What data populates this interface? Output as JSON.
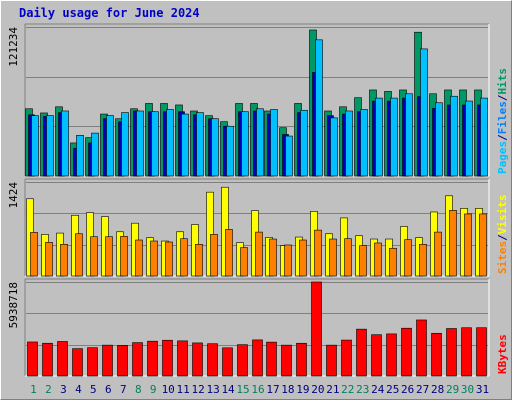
{
  "title": "Daily usage for June 2024",
  "colors": {
    "hits": "#009966",
    "files": "#0080ff",
    "pages": "#00c0ff",
    "visits": "#ffff00",
    "sites": "#ff8000",
    "kbytes": "#ff0000",
    "weekend_day": "#00805c",
    "weekday_day": "#000080"
  },
  "panels": {
    "top": {
      "y_max_label": "121234",
      "legend": [
        {
          "text": "Pages",
          "color": "#00c0ff"
        },
        {
          "text": "/",
          "color": "#000080"
        },
        {
          "text": "Files",
          "color": "#0080ff"
        },
        {
          "text": "/",
          "color": "#000080"
        },
        {
          "text": "Hits",
          "color": "#009966"
        }
      ]
    },
    "middle": {
      "y_max_label": "1424",
      "legend": [
        {
          "text": "Sites",
          "color": "#ff8000"
        },
        {
          "text": "/",
          "color": "#000080"
        },
        {
          "text": "Visits",
          "color": "#ffff00"
        }
      ]
    },
    "bottom": {
      "y_max_label": "5938718",
      "legend": [
        {
          "text": "KBytes",
          "color": "#ff0000"
        }
      ]
    }
  },
  "chart_data": {
    "type": "bar",
    "title": "Daily usage for June 2024",
    "categories": [
      "1",
      "2",
      "3",
      "4",
      "5",
      "6",
      "7",
      "8",
      "9",
      "10",
      "11",
      "12",
      "13",
      "14",
      "15",
      "16",
      "17",
      "18",
      "19",
      "20",
      "21",
      "22",
      "23",
      "24",
      "25",
      "26",
      "27",
      "28",
      "29",
      "30",
      "31"
    ],
    "weekend": [
      1,
      2,
      8,
      9,
      15,
      16,
      22,
      23,
      29,
      30
    ],
    "panels": [
      {
        "name": "top",
        "ymax": 121234,
        "series": [
          {
            "name": "Hits",
            "values": [
              54700,
              51300,
              56300,
              26900,
              31200,
              50400,
              46600,
              54700,
              59000,
              59000,
              57800,
              52900,
              49100,
              44200,
              59000,
              59000,
              52900,
              39300,
              59000,
              118800,
              52900,
              56300,
              63700,
              70000,
              68800,
              70000,
              117000,
              66900,
              70000,
              70000,
              70000
            ]
          },
          {
            "name": "Files",
            "values": [
              49800,
              48500,
              51600,
              22600,
              26900,
              46600,
              44200,
              52900,
              52300,
              52300,
              52300,
              49800,
              46600,
              40500,
              52300,
              52900,
              50400,
              33800,
              51600,
              84400,
              49100,
              50400,
              52300,
              60900,
              60900,
              63400,
              64600,
              55100,
              57800,
              57800,
              57800
            ]
          },
          {
            "name": "Pages",
            "values": [
              49100,
              49100,
              52900,
              33100,
              34900,
              49100,
              51600,
              52900,
              52300,
              54100,
              50400,
              51600,
              46600,
              40500,
              52300,
              54700,
              54100,
              32500,
              53500,
              110800,
              47300,
              52900,
              54100,
              63400,
              63400,
              66900,
              103400,
              59600,
              64900,
              61000,
              63400
            ]
          }
        ]
      },
      {
        "name": "middle",
        "ymax": 1424,
        "series": [
          {
            "name": "Visits",
            "values": [
              1170,
              630,
              650,
              920,
              960,
              900,
              670,
              800,
              580,
              530,
              670,
              780,
              1270,
              1345,
              505,
              990,
              585,
              460,
              590,
              980,
              640,
              880,
              610,
              560,
              560,
              750,
              580,
              970,
              1215,
              1025,
              1025
            ]
          },
          {
            "name": "Sites",
            "values": [
              660,
              510,
              480,
              640,
              595,
              595,
              600,
              545,
              530,
              515,
              565,
              480,
              630,
              705,
              430,
              665,
              560,
              470,
              545,
              695,
              560,
              565,
              460,
              500,
              420,
              550,
              480,
              665,
              995,
              940,
              940
            ]
          }
        ]
      },
      {
        "name": "bottom",
        "ymax": 5938718,
        "series": [
          {
            "name": "KBytes",
            "values": [
              2150000,
              2070000,
              2180000,
              1730000,
              1790000,
              1950000,
              1940000,
              2110000,
              2200000,
              2260000,
              2220000,
              2090000,
              2040000,
              1780000,
              1980000,
              2280000,
              2140000,
              1950000,
              2070000,
              5938718,
              1950000,
              2270000,
              2960000,
              2610000,
              2660000,
              3020000,
              3540000,
              2700000,
              3000000,
              3050000,
              3050000
            ]
          }
        ]
      }
    ]
  }
}
